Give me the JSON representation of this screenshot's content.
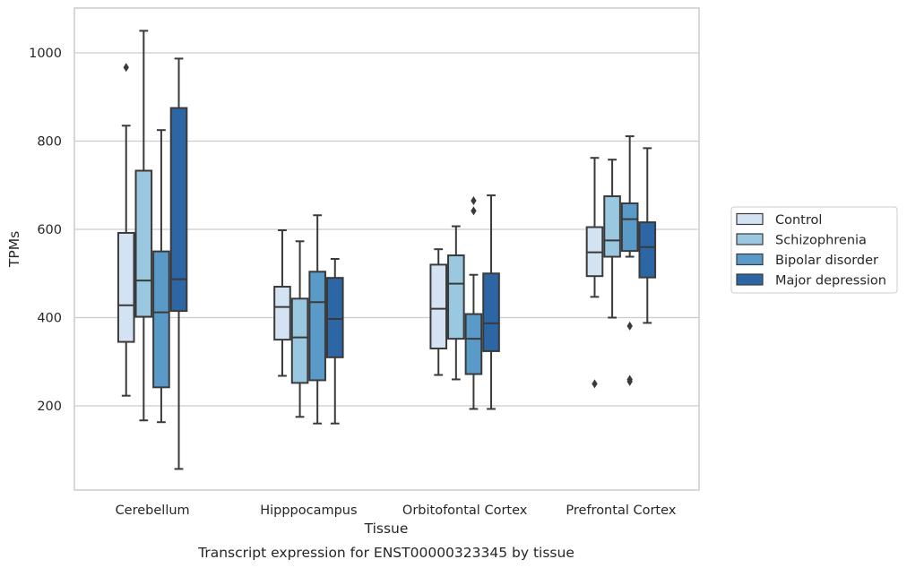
{
  "chart_data": {
    "type": "box",
    "caption": "Transcript expression for ENST00000323345 by tissue",
    "xlabel": "Tissue",
    "ylabel": "TPMs",
    "ylim": [
      10,
      1100
    ],
    "yticks": [
      200,
      400,
      600,
      800,
      1000
    ],
    "grid": true,
    "legend_position": "right-center",
    "categories": [
      "Cerebellum",
      "Hipppocampus",
      "Orbitofontal Cortex",
      "Prefrontal Cortex"
    ],
    "series": [
      {
        "name": "Control",
        "color": "#d4e3f3",
        "boxes": [
          {
            "whisker_low": 223,
            "q1": 345,
            "median": 428,
            "q3": 592,
            "whisker_high": 835,
            "outliers": [
              967
            ]
          },
          {
            "whisker_low": 268,
            "q1": 350,
            "median": 424,
            "q3": 470,
            "whisker_high": 598,
            "outliers": []
          },
          {
            "whisker_low": 270,
            "q1": 330,
            "median": 420,
            "q3": 520,
            "whisker_high": 555,
            "outliers": []
          },
          {
            "whisker_low": 447,
            "q1": 494,
            "median": 548,
            "q3": 605,
            "whisker_high": 762,
            "outliers": [
              250
            ]
          }
        ]
      },
      {
        "name": "Schizophrenia",
        "color": "#9ac8e0",
        "boxes": [
          {
            "whisker_low": 167,
            "q1": 402,
            "median": 484,
            "q3": 733,
            "whisker_high": 1050,
            "outliers": []
          },
          {
            "whisker_low": 175,
            "q1": 252,
            "median": 355,
            "q3": 443,
            "whisker_high": 573,
            "outliers": []
          },
          {
            "whisker_low": 260,
            "q1": 352,
            "median": 477,
            "q3": 541,
            "whisker_high": 607,
            "outliers": []
          },
          {
            "whisker_low": 400,
            "q1": 538,
            "median": 575,
            "q3": 675,
            "whisker_high": 758,
            "outliers": []
          }
        ]
      },
      {
        "name": "Bipolar disorder",
        "color": "#5a9ac8",
        "boxes": [
          {
            "whisker_low": 163,
            "q1": 242,
            "median": 412,
            "q3": 550,
            "whisker_high": 825,
            "outliers": []
          },
          {
            "whisker_low": 160,
            "q1": 258,
            "median": 435,
            "q3": 504,
            "whisker_high": 632,
            "outliers": []
          },
          {
            "whisker_low": 193,
            "q1": 272,
            "median": 352,
            "q3": 408,
            "whisker_high": 497,
            "outliers": [
              642,
              665
            ]
          },
          {
            "whisker_low": 538,
            "q1": 551,
            "median": 623,
            "q3": 659,
            "whisker_high": 811,
            "outliers": [
              381,
              255,
              260
            ]
          }
        ]
      },
      {
        "name": "Major depression",
        "color": "#2c66a4",
        "boxes": [
          {
            "whisker_low": 57,
            "q1": 415,
            "median": 487,
            "q3": 875,
            "whisker_high": 987,
            "outliers": []
          },
          {
            "whisker_low": 160,
            "q1": 310,
            "median": 397,
            "q3": 490,
            "whisker_high": 533,
            "outliers": []
          },
          {
            "whisker_low": 193,
            "q1": 324,
            "median": 387,
            "q3": 500,
            "whisker_high": 677,
            "outliers": []
          },
          {
            "whisker_low": 388,
            "q1": 491,
            "median": 560,
            "q3": 616,
            "whisker_high": 784,
            "outliers": []
          }
        ]
      }
    ]
  }
}
